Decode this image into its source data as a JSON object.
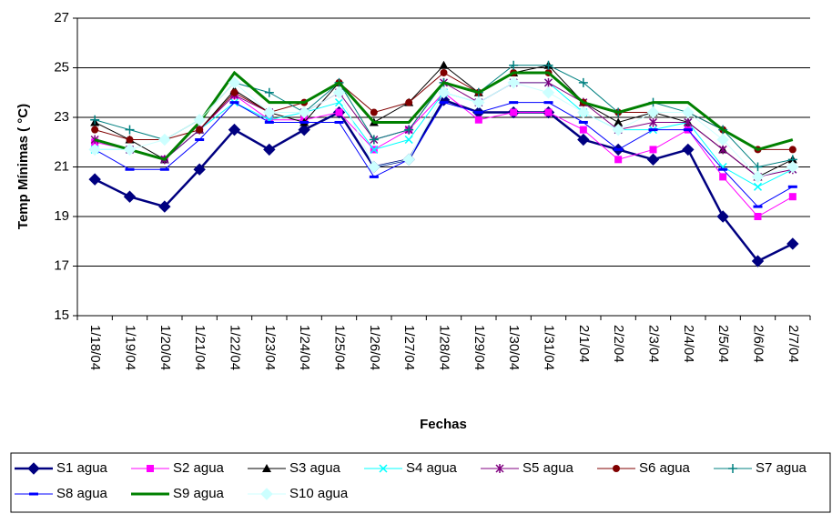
{
  "chart_data": {
    "type": "line",
    "y_label": "Temp Mínimas (  °C)",
    "x_label": "Fechas",
    "categories": [
      "1/18/04",
      "1/19/04",
      "1/20/04",
      "1/21/04",
      "1/22/04",
      "1/23/04",
      "1/24/04",
      "1/25/04",
      "1/26/04",
      "1/27/04",
      "1/28/04",
      "1/29/04",
      "1/30/04",
      "1/31/04",
      "2/1/04",
      "2/2/04",
      "2/3/04",
      "2/4/04",
      "2/5/04",
      "2/6/04",
      "2/7/04"
    ],
    "ylim": [
      15,
      27
    ],
    "yticks": [
      15,
      17,
      19,
      21,
      23,
      25,
      27
    ],
    "grid": true,
    "series": [
      {
        "name": "S1 agua",
        "color": "#000080",
        "marker": "diamond",
        "line_width": 2.5,
        "values": [
          20.5,
          19.8,
          19.4,
          20.9,
          22.5,
          21.7,
          22.5,
          23.2,
          21.0,
          21.3,
          23.7,
          23.2,
          23.2,
          23.2,
          22.1,
          21.7,
          21.3,
          21.7,
          19.0,
          17.2,
          17.9
        ]
      },
      {
        "name": "S2 agua",
        "color": "#ff00ff",
        "marker": "square",
        "line_width": 1,
        "values": [
          22.0,
          21.7,
          21.3,
          22.5,
          23.9,
          22.9,
          22.9,
          23.2,
          21.7,
          22.5,
          24.0,
          22.9,
          23.2,
          23.2,
          22.5,
          21.3,
          21.7,
          22.5,
          20.6,
          19.0,
          19.8
        ]
      },
      {
        "name": "S3 agua",
        "color": "#000000",
        "marker": "triangle",
        "line_width": 1,
        "values": [
          22.8,
          22.1,
          21.3,
          22.5,
          24.1,
          23.2,
          22.8,
          24.4,
          22.8,
          23.6,
          25.1,
          24.0,
          24.8,
          25.1,
          23.6,
          22.8,
          23.2,
          22.8,
          21.7,
          20.6,
          21.3
        ]
      },
      {
        "name": "S4 agua",
        "color": "#00ffff",
        "marker": "x",
        "line_width": 1,
        "values": [
          21.7,
          21.7,
          21.3,
          22.5,
          23.6,
          22.9,
          23.2,
          23.6,
          21.7,
          22.1,
          24.0,
          23.6,
          24.4,
          24.4,
          23.2,
          22.5,
          22.5,
          22.8,
          21.0,
          20.2,
          20.9
        ]
      },
      {
        "name": "S5 agua",
        "color": "#800080",
        "marker": "star",
        "line_width": 1,
        "values": [
          22.1,
          21.7,
          21.3,
          22.5,
          23.9,
          23.2,
          23.2,
          24.0,
          22.1,
          22.5,
          24.4,
          23.6,
          24.4,
          24.4,
          23.6,
          22.5,
          22.8,
          22.8,
          21.7,
          20.6,
          20.9
        ]
      },
      {
        "name": "S6 agua",
        "color": "#800000",
        "marker": "circle",
        "line_width": 1,
        "values": [
          22.5,
          22.1,
          22.1,
          22.5,
          24.0,
          23.2,
          23.6,
          24.4,
          23.2,
          23.6,
          24.8,
          24.0,
          24.8,
          24.8,
          23.6,
          23.2,
          23.2,
          23.2,
          22.5,
          21.7,
          21.7
        ]
      },
      {
        "name": "S7 agua",
        "color": "#008080",
        "marker": "plus",
        "line_width": 1,
        "values": [
          22.9,
          22.5,
          22.1,
          22.9,
          24.4,
          24.0,
          23.2,
          24.4,
          22.1,
          22.5,
          24.4,
          24.0,
          25.1,
          25.1,
          24.4,
          23.2,
          23.6,
          23.2,
          22.5,
          21.0,
          21.3
        ]
      },
      {
        "name": "S8 agua",
        "color": "#0000ff",
        "marker": "dash",
        "line_width": 1,
        "values": [
          21.7,
          20.9,
          20.9,
          22.1,
          23.6,
          22.8,
          22.8,
          22.8,
          20.6,
          21.3,
          23.6,
          23.2,
          23.6,
          23.6,
          22.8,
          21.7,
          22.5,
          22.5,
          20.9,
          19.4,
          20.2
        ]
      },
      {
        "name": "S9 agua",
        "color": "#008000",
        "marker": "none",
        "line_width": 3,
        "values": [
          22.1,
          21.7,
          21.3,
          22.8,
          24.8,
          23.6,
          23.6,
          24.4,
          22.8,
          22.8,
          24.4,
          24.0,
          24.8,
          24.8,
          23.6,
          23.2,
          23.6,
          23.6,
          22.5,
          21.7,
          22.1
        ]
      },
      {
        "name": "S10 agua",
        "color": "#ccffff",
        "marker": "diamond",
        "line_width": 1,
        "values": [
          21.7,
          21.7,
          22.1,
          22.9,
          24.4,
          23.2,
          23.2,
          24.0,
          21.0,
          21.3,
          24.0,
          23.6,
          24.4,
          24.0,
          23.2,
          22.5,
          23.2,
          23.2,
          22.1,
          20.6,
          21.0
        ]
      }
    ]
  }
}
